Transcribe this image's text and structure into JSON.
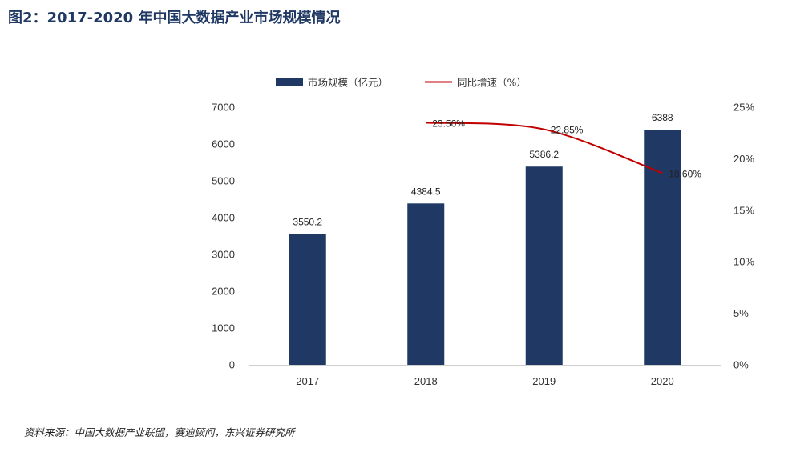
{
  "figure_title": "图2：2017-2020 年中国大数据产业市场规模情况",
  "source": "资料来源：中国大数据产业联盟，赛迪顾问，东兴证券研究所",
  "chart_data": {
    "type": "bar",
    "categories": [
      "2017",
      "2018",
      "2019",
      "2020"
    ],
    "series": [
      {
        "name": "市场规模（亿元）",
        "type": "bar",
        "axis": "left",
        "color": "#1f3864",
        "values": [
          3550.2,
          4384.5,
          5386.2,
          6388
        ],
        "labels": [
          "3550.2",
          "4384.5",
          "5386.2",
          "6388"
        ]
      },
      {
        "name": "同比增速（%）",
        "type": "line",
        "axis": "right",
        "color": "#c00000",
        "values": [
          null,
          23.5,
          22.85,
          18.6
        ],
        "labels": [
          "",
          "23.50%",
          "22.85%",
          "18.60%"
        ]
      }
    ],
    "y_left": {
      "ylim": [
        0,
        7000
      ],
      "ticks": [
        "0",
        "1000",
        "2000",
        "3000",
        "4000",
        "5000",
        "6000",
        "7000"
      ]
    },
    "y_right": {
      "ylim": [
        0,
        25
      ],
      "ticks": [
        "0%",
        "5%",
        "10%",
        "15%",
        "20%",
        "25%"
      ]
    },
    "legend_position": "top-center",
    "grid": false
  }
}
